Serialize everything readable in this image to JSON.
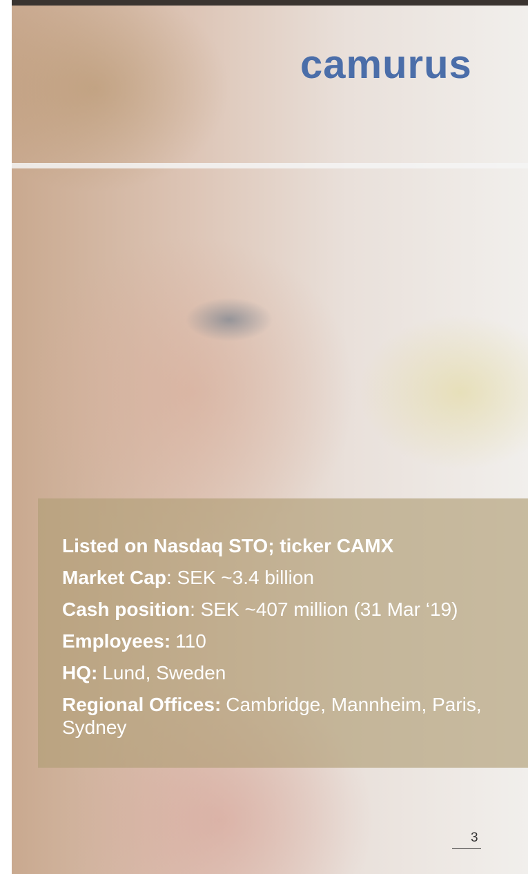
{
  "header": {
    "logo": "camurus"
  },
  "facts": [
    {
      "label": "Listed on Nasdaq STO; ticker CAMX"
    },
    {
      "label": "Market Cap",
      "value": ": SEK ~3.4 billion"
    },
    {
      "label": "Cash position",
      "value": ": SEK ~407 million (31 Mar ‘19)"
    },
    {
      "label": "Employees:",
      "value": "110"
    },
    {
      "label": "HQ:",
      "value": "Lund, Sweden"
    },
    {
      "label": "Regional Offices:",
      "value": "Cambridge, Mannheim, Paris, Sydney"
    }
  ],
  "footer": {
    "page_number": "3"
  }
}
